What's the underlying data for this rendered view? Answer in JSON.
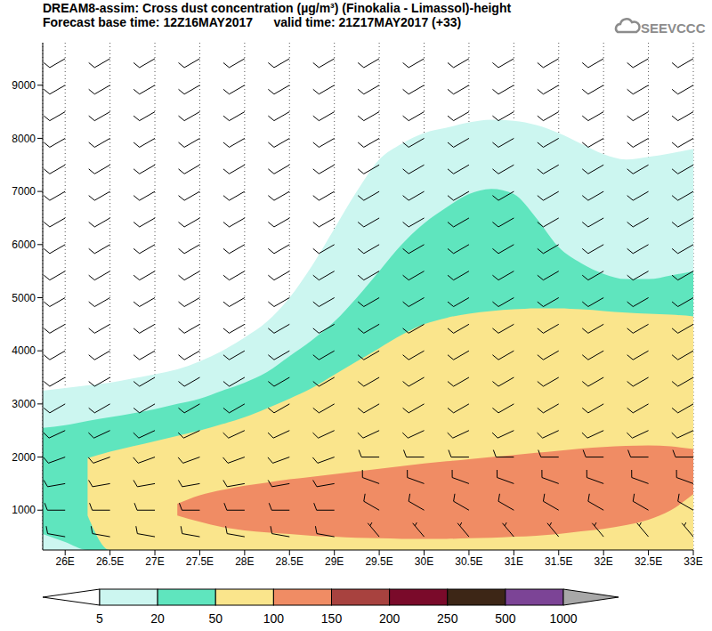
{
  "chart_data": {
    "type": "contour",
    "title": "DREAM8-assim: Cross dust concentration (µg/m³) (Finokalia - Limassol)-height",
    "subtitle": "Forecast base time: 12Z16MAY2017      valid time: 21Z17MAY2017 (+33)",
    "annotation": "SEEVCCC",
    "grid": true,
    "xlim": [
      25.75,
      33
    ],
    "xticks": [
      {
        "value": 26,
        "label": "26E"
      },
      {
        "value": 26.5,
        "label": "26.5E"
      },
      {
        "value": 27,
        "label": "27E"
      },
      {
        "value": 27.5,
        "label": "27.5E"
      },
      {
        "value": 28,
        "label": "28E"
      },
      {
        "value": 28.5,
        "label": "28.5E"
      },
      {
        "value": 29,
        "label": "29E"
      },
      {
        "value": 29.5,
        "label": "29.5E"
      },
      {
        "value": 30,
        "label": "30E"
      },
      {
        "value": 30.5,
        "label": "30.5E"
      },
      {
        "value": 31,
        "label": "31E"
      },
      {
        "value": 31.5,
        "label": "31.5E"
      },
      {
        "value": 32,
        "label": "32E"
      },
      {
        "value": 32.5,
        "label": "32.5E"
      },
      {
        "value": 33,
        "label": "33E"
      }
    ],
    "ylim": [
      250,
      9800
    ],
    "yticks": [
      1000,
      2000,
      3000,
      4000,
      5000,
      6000,
      7000,
      8000,
      9000
    ],
    "x": [
      25.75,
      26,
      26.25,
      26.5,
      26.75,
      27,
      27.25,
      27.5,
      27.75,
      28,
      28.25,
      28.5,
      28.75,
      29,
      29.25,
      29.5,
      29.75,
      30,
      30.25,
      30.5,
      30.75,
      31,
      31.25,
      31.5,
      31.75,
      32,
      32.25,
      32.5,
      32.75,
      33
    ],
    "levels": [
      {
        "min": 5,
        "low": [
          250,
          250,
          250,
          250,
          250,
          250,
          250,
          250,
          250,
          250,
          250,
          250,
          250,
          250,
          250,
          250,
          250,
          250,
          250,
          250,
          250,
          250,
          250,
          250,
          250,
          250,
          250,
          250,
          250,
          250
        ],
        "high": [
          3250,
          3300,
          3350,
          3400,
          3480,
          3560,
          3650,
          3800,
          4000,
          4250,
          4550,
          5000,
          5600,
          6300,
          7000,
          7600,
          7900,
          8100,
          8200,
          8300,
          8350,
          8330,
          8250,
          8100,
          7900,
          7700,
          7600,
          7650,
          7720,
          7800
        ]
      },
      {
        "min": 20,
        "low": [
          550,
          400,
          250,
          250,
          250,
          250,
          250,
          250,
          250,
          250,
          250,
          250,
          250,
          250,
          250,
          250,
          250,
          250,
          250,
          250,
          250,
          250,
          250,
          250,
          250,
          250,
          250,
          250,
          250,
          250
        ],
        "high": [
          2550,
          2600,
          2680,
          2750,
          2820,
          2900,
          3000,
          3100,
          3250,
          3400,
          3600,
          3900,
          4200,
          4550,
          5000,
          5500,
          6000,
          6400,
          6700,
          6950,
          7050,
          6950,
          6500,
          5950,
          5650,
          5450,
          5350,
          5350,
          5420,
          5500
        ]
      },
      {
        "min": 50,
        "low": [
          null,
          null,
          900,
          250,
          250,
          250,
          250,
          250,
          250,
          250,
          250,
          250,
          250,
          250,
          250,
          250,
          250,
          250,
          250,
          250,
          250,
          250,
          250,
          250,
          250,
          250,
          250,
          250,
          250,
          250
        ],
        "high": [
          null,
          null,
          1980,
          2100,
          2200,
          2300,
          2400,
          2500,
          2620,
          2750,
          2920,
          3100,
          3300,
          3550,
          3800,
          4050,
          4300,
          4500,
          4620,
          4700,
          4750,
          4780,
          4800,
          4800,
          4780,
          4750,
          4720,
          4700,
          4680,
          4650
        ]
      },
      {
        "min": 100,
        "low": [
          null,
          null,
          null,
          null,
          null,
          null,
          900,
          780,
          680,
          620,
          580,
          550,
          520,
          500,
          480,
          470,
          460,
          460,
          460,
          470,
          480,
          500,
          520,
          550,
          600,
          650,
          720,
          820,
          1000,
          1300
        ],
        "high": [
          null,
          null,
          null,
          null,
          null,
          null,
          1120,
          1280,
          1380,
          1460,
          1520,
          1580,
          1630,
          1680,
          1730,
          1780,
          1830,
          1880,
          1920,
          1960,
          2000,
          2040,
          2080,
          2120,
          2160,
          2190,
          2210,
          2220,
          2200,
          2150
        ]
      }
    ],
    "colorbar": {
      "ticks": [
        5,
        20,
        50,
        100,
        150,
        200,
        250,
        500,
        1000
      ],
      "colors": [
        "#ffffff",
        "#ccf6f0",
        "#5fe5be",
        "#fae58c",
        "#f08c64",
        "#a8423f",
        "#7a0a2a",
        "#3d2616",
        "#7c4496",
        "#a8a8a8"
      ]
    },
    "wind": {
      "x": [
        26,
        26.5,
        27,
        27.5,
        28,
        28.5,
        29,
        29.5,
        30,
        30.5,
        31,
        31.5,
        32,
        32.5,
        33
      ],
      "heights": [
        500,
        1000,
        1500,
        2000,
        2500,
        3000,
        3500,
        4000,
        4500,
        5000,
        5500,
        6000,
        6500,
        7000,
        7500,
        8000,
        8500,
        9000,
        9500
      ],
      "direction": [
        [
          280,
          280,
          280,
          280,
          280,
          280,
          280,
          320,
          320,
          320,
          320,
          320,
          320,
          320,
          320
        ],
        [
          270,
          270,
          270,
          270,
          270,
          270,
          270,
          300,
          300,
          300,
          300,
          300,
          300,
          300,
          300
        ],
        [
          260,
          260,
          260,
          260,
          260,
          260,
          260,
          290,
          290,
          290,
          290,
          290,
          290,
          290,
          290
        ],
        [
          250,
          250,
          250,
          250,
          250,
          250,
          250,
          270,
          270,
          270,
          270,
          270,
          270,
          270,
          270
        ],
        [
          245,
          245,
          245,
          245,
          245,
          245,
          245,
          245,
          245,
          245,
          245,
          245,
          245,
          245,
          245
        ],
        [
          240,
          240,
          240,
          240,
          240,
          240,
          240,
          240,
          240,
          240,
          240,
          240,
          240,
          240,
          240
        ],
        [
          240,
          240,
          240,
          240,
          240,
          240,
          240,
          240,
          240,
          240,
          240,
          240,
          240,
          240,
          240
        ],
        [
          240,
          240,
          240,
          240,
          240,
          240,
          240,
          240,
          240,
          240,
          240,
          240,
          240,
          240,
          240
        ],
        [
          240,
          240,
          240,
          240,
          240,
          240,
          240,
          240,
          240,
          240,
          240,
          240,
          240,
          240,
          240
        ],
        [
          240,
          240,
          240,
          240,
          240,
          240,
          240,
          240,
          240,
          240,
          240,
          240,
          240,
          240,
          240
        ],
        [
          240,
          240,
          240,
          240,
          240,
          240,
          240,
          240,
          240,
          240,
          240,
          240,
          240,
          240,
          240
        ],
        [
          240,
          240,
          240,
          240,
          240,
          240,
          240,
          240,
          240,
          240,
          240,
          240,
          240,
          240,
          240
        ],
        [
          240,
          240,
          240,
          240,
          240,
          240,
          240,
          240,
          240,
          240,
          240,
          240,
          240,
          240,
          240
        ],
        [
          240,
          240,
          240,
          240,
          240,
          240,
          240,
          240,
          240,
          240,
          240,
          240,
          240,
          240,
          240
        ],
        [
          240,
          240,
          240,
          240,
          240,
          240,
          240,
          240,
          240,
          240,
          240,
          240,
          240,
          240,
          240
        ],
        [
          240,
          240,
          240,
          240,
          240,
          240,
          240,
          240,
          240,
          240,
          240,
          240,
          240,
          240,
          240
        ],
        [
          240,
          240,
          240,
          240,
          240,
          240,
          240,
          240,
          240,
          240,
          240,
          240,
          240,
          240,
          240
        ],
        [
          240,
          240,
          240,
          240,
          240,
          240,
          240,
          240,
          240,
          240,
          240,
          240,
          240,
          240,
          240
        ],
        [
          240,
          240,
          240,
          240,
          240,
          240,
          240,
          240,
          240,
          240,
          240,
          240,
          240,
          240,
          240
        ]
      ],
      "speed": [
        [
          10,
          10,
          10,
          10,
          10,
          10,
          10,
          5,
          5,
          5,
          5,
          5,
          5,
          5,
          5
        ],
        [
          10,
          10,
          10,
          10,
          10,
          10,
          10,
          10,
          10,
          10,
          10,
          10,
          10,
          10,
          10
        ],
        [
          10,
          10,
          10,
          10,
          10,
          10,
          10,
          10,
          10,
          10,
          10,
          10,
          10,
          10,
          10
        ],
        [
          10,
          10,
          10,
          10,
          10,
          10,
          10,
          10,
          10,
          10,
          10,
          10,
          10,
          10,
          10
        ],
        [
          10,
          10,
          10,
          10,
          10,
          10,
          10,
          10,
          10,
          10,
          10,
          10,
          10,
          10,
          10
        ],
        [
          10,
          10,
          10,
          10,
          10,
          10,
          10,
          10,
          10,
          10,
          10,
          10,
          10,
          10,
          10
        ],
        [
          10,
          10,
          10,
          10,
          10,
          10,
          10,
          10,
          10,
          10,
          10,
          10,
          10,
          10,
          10
        ],
        [
          10,
          10,
          10,
          10,
          10,
          10,
          10,
          10,
          10,
          10,
          10,
          10,
          10,
          10,
          10
        ],
        [
          10,
          10,
          10,
          10,
          10,
          10,
          10,
          10,
          10,
          10,
          10,
          10,
          10,
          10,
          10
        ],
        [
          10,
          10,
          10,
          10,
          10,
          10,
          10,
          10,
          10,
          10,
          10,
          10,
          10,
          10,
          10
        ],
        [
          10,
          10,
          10,
          10,
          10,
          10,
          10,
          10,
          10,
          10,
          10,
          10,
          10,
          10,
          10
        ],
        [
          10,
          10,
          10,
          10,
          10,
          10,
          10,
          10,
          10,
          10,
          10,
          10,
          10,
          10,
          10
        ],
        [
          10,
          10,
          10,
          10,
          10,
          10,
          10,
          10,
          10,
          10,
          10,
          10,
          10,
          10,
          10
        ],
        [
          10,
          10,
          10,
          10,
          10,
          10,
          10,
          10,
          10,
          10,
          10,
          10,
          10,
          10,
          10
        ],
        [
          10,
          10,
          10,
          10,
          10,
          10,
          10,
          10,
          10,
          10,
          10,
          10,
          10,
          10,
          10
        ],
        [
          10,
          10,
          10,
          10,
          10,
          10,
          10,
          10,
          10,
          10,
          10,
          10,
          10,
          10,
          10
        ],
        [
          10,
          10,
          10,
          10,
          10,
          10,
          10,
          10,
          10,
          10,
          10,
          10,
          10,
          10,
          10
        ],
        [
          10,
          10,
          10,
          10,
          10,
          10,
          10,
          10,
          10,
          10,
          10,
          10,
          10,
          10,
          10
        ],
        [
          10,
          10,
          10,
          10,
          10,
          10,
          10,
          10,
          10,
          10,
          10,
          10,
          10,
          10,
          10
        ]
      ]
    }
  }
}
